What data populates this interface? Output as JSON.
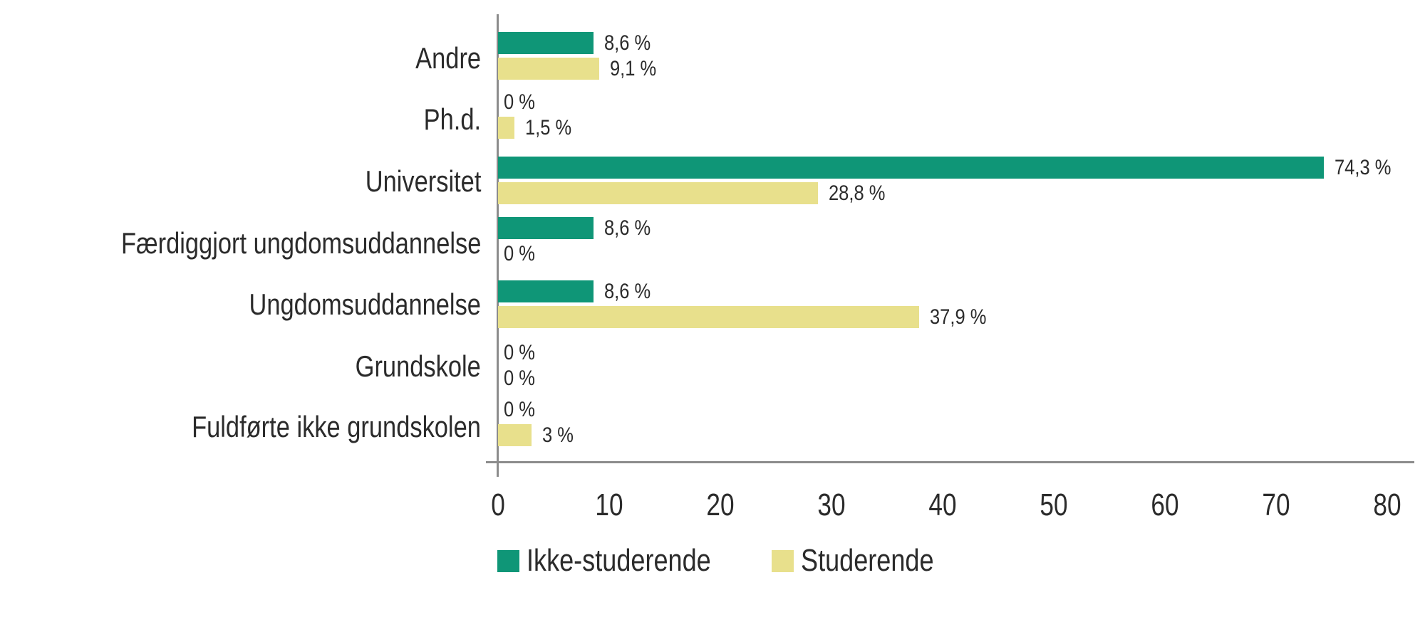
{
  "chart_data": {
    "type": "bar",
    "orientation": "horizontal",
    "title": "",
    "xlabel": "",
    "ylabel": "",
    "xlim": [
      0,
      80
    ],
    "xticks": [
      0,
      10,
      20,
      30,
      40,
      50,
      60,
      70,
      80
    ],
    "grid": false,
    "legend_position": "bottom",
    "categories": [
      "Andre",
      "Ph.d.",
      "Universitet",
      "Færdiggjort ungdomsuddannelse",
      "Ungdomsuddannelse",
      "Grundskole",
      "Fuldførte ikke grundskolen"
    ],
    "series": [
      {
        "name": "Ikke-studerende",
        "color": "#0f9677",
        "values": [
          8.6,
          0,
          74.3,
          8.6,
          8.6,
          0,
          0
        ],
        "labels": [
          "8,6 %",
          "0 %",
          "74,3 %",
          "8,6 %",
          "8,6 %",
          "0 %",
          "0 %"
        ]
      },
      {
        "name": "Studerende",
        "color": "#e8e08c",
        "values": [
          9.1,
          1.5,
          28.8,
          0,
          37.9,
          0,
          3
        ],
        "labels": [
          "9,1 %",
          "1,5 %",
          "28,8 %",
          "0 %",
          "37,9 %",
          "0 %",
          "3 %"
        ]
      }
    ]
  },
  "axis": {
    "ticks": [
      "0",
      "10",
      "20",
      "30",
      "40",
      "50",
      "60",
      "70",
      "80"
    ]
  },
  "legend": {
    "items": [
      {
        "label": "Ikke-studerende",
        "color": "#0f9677"
      },
      {
        "label": "Studerende",
        "color": "#e8e08c"
      }
    ]
  }
}
